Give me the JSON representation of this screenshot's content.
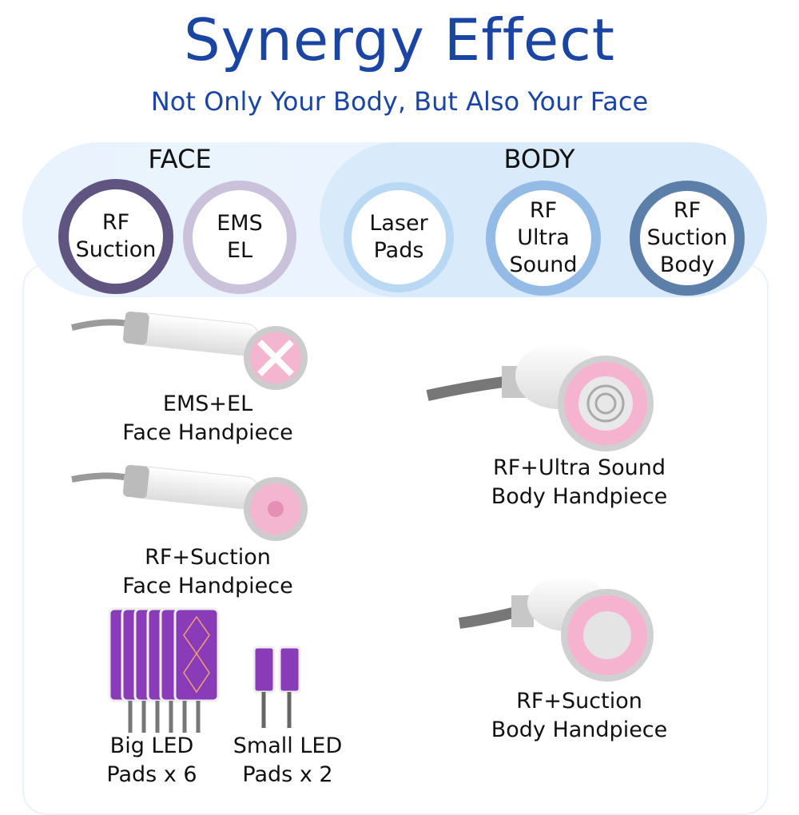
{
  "header": {
    "title": "Synergy Effect",
    "subtitle": "Not Only Your Body, But Also Your Face"
  },
  "groups": {
    "face": "FACE",
    "body": "BODY"
  },
  "circles": [
    {
      "line1": "RF",
      "line2": "Suction",
      "line3": "",
      "color": "#5f5580"
    },
    {
      "line1": "EMS",
      "line2": "EL",
      "line3": "",
      "color": "#c9c2da"
    },
    {
      "line1": "Laser",
      "line2": "Pads",
      "line3": "",
      "color": "#b9d8f4"
    },
    {
      "line1": "RF",
      "line2": "Ultra",
      "line3": "Sound",
      "color": "#93bbe6"
    },
    {
      "line1": "RF",
      "line2": "Suction",
      "line3": "Body",
      "color": "#5b7fa8"
    }
  ],
  "products": [
    {
      "line1": "EMS+EL",
      "line2": "Face Handpiece"
    },
    {
      "line1": "RF+Suction",
      "line2": "Face Handpiece"
    },
    {
      "line1": "Big LED",
      "line2": "Pads x 6"
    },
    {
      "line1": "Small LED",
      "line2": "Pads x 2"
    },
    {
      "line1": "RF+Ultra Sound",
      "line2": "Body Handpiece"
    },
    {
      "line1": "RF+Suction",
      "line2": "Body Handpiece"
    }
  ],
  "colors": {
    "title": "#1b45a3",
    "pad": "#8a3bb8",
    "head_pink": "#f2a6c8"
  }
}
